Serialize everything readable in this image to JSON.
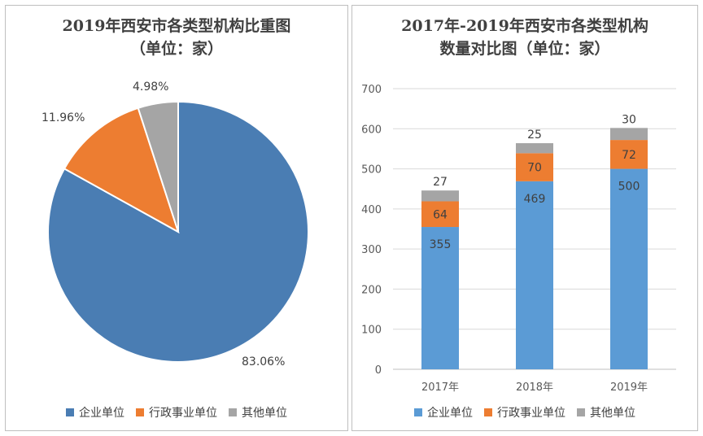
{
  "chart_data": [
    {
      "type": "pie",
      "title_line1": "2019年西安市各类型机构比重图",
      "title_line2": "（单位：家）",
      "labels": [
        "企业单位",
        "行政事业单位",
        "其他单位"
      ],
      "values": [
        83.06,
        11.96,
        4.98
      ],
      "value_labels": [
        "83.06%",
        "11.96%",
        "4.98%"
      ],
      "colors": [
        "#4a7db3",
        "#ed7d31",
        "#a5a5a5"
      ],
      "legend_position": "bottom"
    },
    {
      "type": "bar",
      "stacked": true,
      "title_line1": "2017年-2019年西安市各类型机构",
      "title_line2": "数量对比图（单位：家）",
      "categories": [
        "2017年",
        "2018年",
        "2019年"
      ],
      "series": [
        {
          "name": "企业单位",
          "values": [
            355,
            469,
            500
          ],
          "color": "#5b9bd5"
        },
        {
          "name": "行政事业单位",
          "values": [
            64,
            70,
            72
          ],
          "color": "#ed7d31"
        },
        {
          "name": "其他单位",
          "values": [
            27,
            25,
            30
          ],
          "color": "#a5a5a5"
        }
      ],
      "ylim": [
        0,
        700
      ],
      "yticks": [
        0,
        100,
        200,
        300,
        400,
        500,
        600,
        700
      ],
      "grid": true,
      "legend_position": "bottom"
    }
  ]
}
